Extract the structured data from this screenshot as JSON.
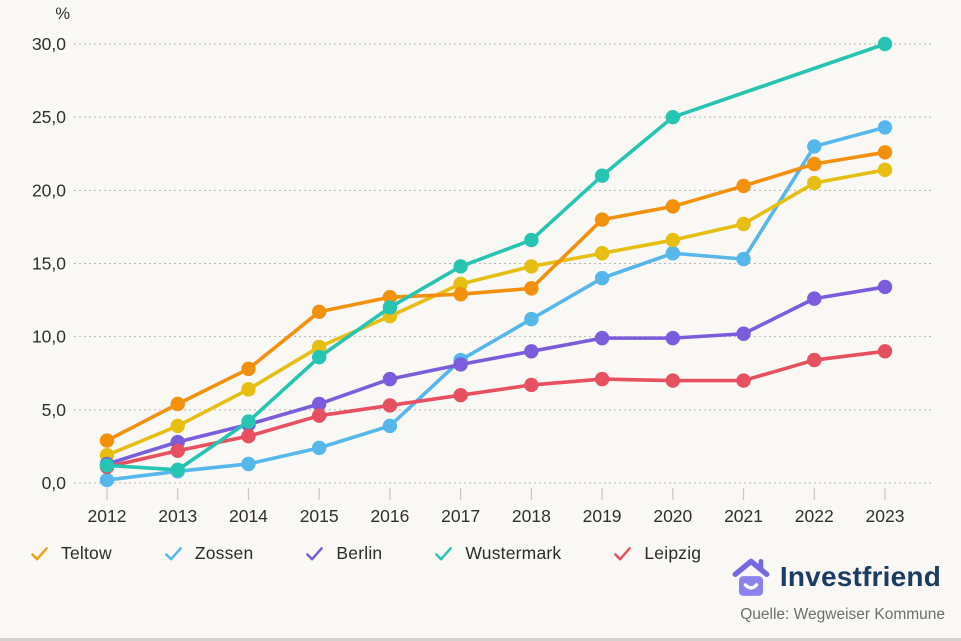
{
  "chart_data": {
    "type": "line",
    "title": "",
    "unit_label": "%",
    "x": [
      "2012",
      "2013",
      "2014",
      "2015",
      "2016",
      "2017",
      "2018",
      "2019",
      "2020",
      "2021",
      "2022",
      "2023"
    ],
    "ylim": [
      0,
      30
    ],
    "y_tick_values": [
      0,
      5,
      10,
      15,
      20,
      25,
      30
    ],
    "y_tick_labels": [
      "0,0",
      "5,0",
      "10,0",
      "15,0",
      "20,0",
      "25,0",
      "30,0"
    ],
    "grid": "horizontal-dotted",
    "legend_position": "bottom",
    "series": [
      {
        "name": "Zossen",
        "color": "#55B7EB",
        "in_legend": true,
        "values": [
          0.2,
          0.8,
          1.3,
          2.4,
          3.9,
          8.4,
          11.2,
          14.0,
          15.7,
          15.3,
          23.0,
          24.3
        ]
      },
      {
        "name": "",
        "color": "#E8BE12",
        "in_legend": false,
        "values": [
          1.9,
          3.9,
          6.4,
          9.3,
          11.4,
          13.6,
          14.8,
          15.7,
          16.6,
          17.7,
          20.5,
          21.4
        ]
      },
      {
        "name": "Berlin",
        "color": "#7A5CDC",
        "in_legend": true,
        "values": [
          1.3,
          2.8,
          4.0,
          5.4,
          7.1,
          8.1,
          9.0,
          9.9,
          9.9,
          10.2,
          12.6,
          13.4
        ]
      },
      {
        "name": "Leipzig",
        "color": "#E6505F",
        "in_legend": true,
        "values": [
          1.1,
          2.2,
          3.2,
          4.6,
          5.3,
          6.0,
          6.7,
          7.1,
          7.0,
          7.0,
          8.4,
          9.0
        ]
      },
      {
        "name": "Teltow",
        "color": "#F3910C",
        "in_legend": true,
        "values": [
          2.9,
          5.4,
          7.8,
          11.7,
          12.7,
          12.9,
          13.3,
          18.0,
          18.9,
          20.3,
          21.8,
          22.6
        ]
      },
      {
        "name": "Wustermark",
        "color": "#26C4B2",
        "in_legend": true,
        "values": [
          1.2,
          0.9,
          4.2,
          8.6,
          12.0,
          14.8,
          16.6,
          21.0,
          25.0,
          null,
          null,
          30.0
        ]
      }
    ]
  },
  "legend": {
    "marker": "checkmark",
    "items": [
      {
        "label": "Teltow",
        "color": "#EDA117"
      },
      {
        "label": "Zossen",
        "color": "#55B7EB"
      },
      {
        "label": "Berlin",
        "color": "#7A5CDC"
      },
      {
        "label": "Wustermark",
        "color": "#26C4B2"
      },
      {
        "label": "Leipzig",
        "color": "#E6505F"
      }
    ]
  },
  "branding": {
    "logo_text": "Investfriend",
    "logo_icon": "house-icon",
    "icon_roof_color": "#7668DF",
    "icon_body_color": "#8C82EC",
    "text_color": "#1C3D63"
  },
  "source": {
    "text": "Quelle: Wegweiser Kommune"
  },
  "colors": {
    "background": "#FAF8F5",
    "gridline": "#b8b6b3",
    "axis_text": "#2f2f2f",
    "tick": "#c9c7c3"
  }
}
